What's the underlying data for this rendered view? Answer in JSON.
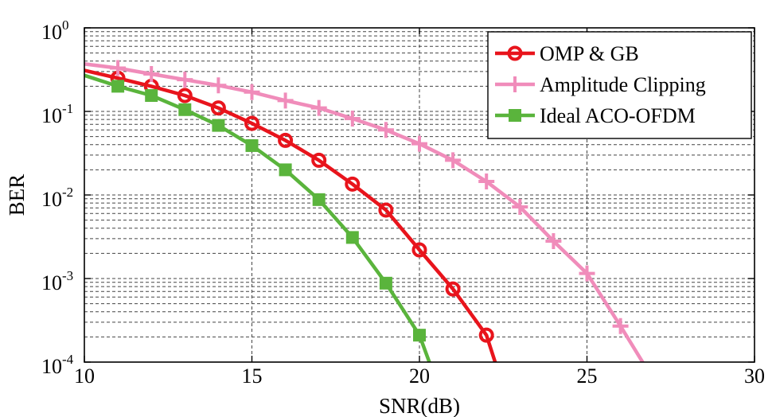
{
  "chart_data": {
    "type": "line",
    "title": "",
    "xlabel": "SNR(dB)",
    "ylabel": "BER",
    "xlim": [
      10,
      30
    ],
    "ylim": [
      0.0001,
      1
    ],
    "yscale": "log",
    "grid": true,
    "legend_position": "top-right",
    "x_ticks": [
      "10",
      "15",
      "20",
      "25",
      "30"
    ],
    "y_ticks": [
      {
        "base": "10",
        "exp": "0"
      },
      {
        "base": "10",
        "exp": "-1"
      },
      {
        "base": "10",
        "exp": "-2"
      },
      {
        "base": "10",
        "exp": "-3"
      },
      {
        "base": "10",
        "exp": "-4"
      }
    ],
    "series": [
      {
        "name": "OMP & GB",
        "color": "#e8141c",
        "marker": "circle",
        "x": [
          10,
          11,
          12,
          13,
          14,
          15,
          16,
          17,
          18,
          19,
          20,
          21,
          22,
          22.5
        ],
        "y": [
          0.31,
          0.25,
          0.2,
          0.155,
          0.11,
          0.072,
          0.045,
          0.026,
          0.0135,
          0.0066,
          0.0022,
          0.00075,
          0.00021,
          5e-05
        ],
        "marker_x": [
          11,
          12,
          13,
          14,
          15,
          16,
          17,
          18,
          19,
          20,
          21,
          22
        ]
      },
      {
        "name": "Amplitude Clipping",
        "color": "#f08cba",
        "marker": "plus",
        "x": [
          10,
          11,
          12,
          13,
          14,
          15,
          16,
          17,
          18,
          19,
          20,
          21,
          22,
          23,
          24,
          25,
          26,
          27
        ],
        "y": [
          0.37,
          0.33,
          0.28,
          0.24,
          0.205,
          0.17,
          0.135,
          0.11,
          0.082,
          0.06,
          0.041,
          0.026,
          0.0145,
          0.0072,
          0.0028,
          0.00115,
          0.00027,
          6e-05
        ],
        "marker_x": [
          11,
          12,
          13,
          14,
          15,
          16,
          17,
          18,
          19,
          20,
          21,
          22,
          23,
          24,
          25,
          26
        ]
      },
      {
        "name": "Ideal ACO-OFDM",
        "color": "#5ab43c",
        "marker": "square",
        "x": [
          10,
          11,
          12,
          13,
          14,
          15,
          16,
          17,
          18,
          19,
          20,
          20.5
        ],
        "y": [
          0.27,
          0.2,
          0.155,
          0.105,
          0.068,
          0.039,
          0.02,
          0.0088,
          0.0031,
          0.00088,
          0.00021,
          6e-05
        ],
        "marker_x": [
          11,
          12,
          13,
          14,
          15,
          16,
          17,
          18,
          19,
          20
        ]
      }
    ]
  }
}
